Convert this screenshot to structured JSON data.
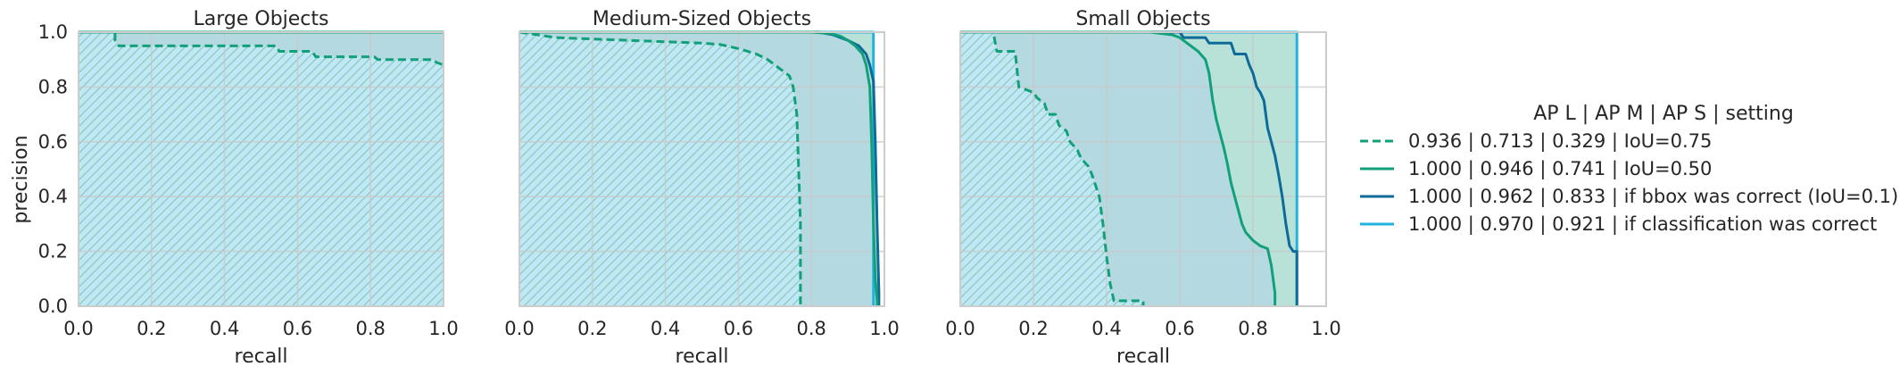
{
  "chart_data": [
    {
      "type": "area",
      "title": "Large Objects",
      "xlabel": "recall",
      "ylabel": "precision",
      "xlim": [
        0,
        1
      ],
      "ylim": [
        0,
        1
      ],
      "xticks": [
        "0.0",
        "0.2",
        "0.4",
        "0.6",
        "0.8",
        "1.0"
      ],
      "yticks": [
        "0.0",
        "0.2",
        "0.4",
        "0.6",
        "0.8",
        "1.0"
      ],
      "grid": true,
      "series": [
        {
          "name": "IoU=0.75",
          "style": "dashed",
          "hatch": true,
          "color": "#12a07b",
          "x": [
            0,
            0.1,
            0.1,
            0.11,
            0.54,
            0.55,
            0.64,
            0.65,
            0.81,
            0.82,
            0.97,
            0.98,
            1.0
          ],
          "y": [
            1,
            1,
            0.97,
            0.95,
            0.95,
            0.93,
            0.93,
            0.91,
            0.91,
            0.9,
            0.9,
            0.89,
            0.88
          ]
        },
        {
          "name": "IoU=0.50",
          "style": "solid",
          "color": "#12a07b",
          "x": [
            0,
            1
          ],
          "y": [
            1,
            1
          ]
        },
        {
          "name": "if bbox was correct",
          "style": "solid",
          "color": "#0e6a98",
          "x": [
            0,
            1
          ],
          "y": [
            1,
            1
          ]
        },
        {
          "name": "if classification was correct",
          "style": "solid",
          "color": "#1fb3dd",
          "x": [
            0,
            1
          ],
          "y": [
            1,
            1
          ]
        }
      ]
    },
    {
      "type": "area",
      "title": "Medium-Sized Objects",
      "xlabel": "recall",
      "ylabel": "",
      "xlim": [
        0,
        1
      ],
      "ylim": [
        0,
        1
      ],
      "xticks": [
        "0.0",
        "0.2",
        "0.4",
        "0.6",
        "0.8",
        "1.0"
      ],
      "yticks": [],
      "grid": true,
      "series": [
        {
          "name": "IoU=0.75",
          "style": "dashed",
          "hatch": true,
          "color": "#12a07b",
          "x": [
            0,
            0.05,
            0.1,
            0.2,
            0.3,
            0.4,
            0.5,
            0.55,
            0.6,
            0.65,
            0.68,
            0.7,
            0.72,
            0.74,
            0.75,
            0.76,
            0.765,
            0.77,
            0.77
          ],
          "y": [
            1,
            0.99,
            0.98,
            0.975,
            0.97,
            0.965,
            0.96,
            0.955,
            0.94,
            0.92,
            0.9,
            0.88,
            0.86,
            0.84,
            0.8,
            0.7,
            0.5,
            0.3,
            0
          ]
        },
        {
          "name": "IoU=0.50",
          "style": "solid",
          "color": "#12a07b",
          "x": [
            0,
            0.8,
            0.85,
            0.88,
            0.9,
            0.92,
            0.94,
            0.95,
            0.96,
            0.965,
            0.97,
            0.975,
            0.98,
            0.98
          ],
          "y": [
            1,
            1,
            0.995,
            0.985,
            0.97,
            0.95,
            0.92,
            0.88,
            0.8,
            0.6,
            0.3,
            0.1,
            0.02,
            0
          ]
        },
        {
          "name": "if bbox was correct",
          "style": "solid",
          "color": "#0e6a98",
          "x": [
            0,
            0.82,
            0.86,
            0.9,
            0.93,
            0.95,
            0.96,
            0.97,
            0.975,
            0.98,
            0.985,
            0.985
          ],
          "y": [
            1,
            1,
            0.99,
            0.97,
            0.95,
            0.92,
            0.88,
            0.82,
            0.6,
            0.3,
            0.05,
            0
          ]
        },
        {
          "name": "if classification was correct",
          "style": "solid",
          "color": "#1fb3dd",
          "x": [
            0,
            0.97,
            0.97
          ],
          "y": [
            1,
            1,
            0
          ]
        }
      ]
    },
    {
      "type": "area",
      "title": "Small Objects",
      "xlabel": "recall",
      "ylabel": "",
      "xlim": [
        0,
        1
      ],
      "ylim": [
        0,
        1
      ],
      "xticks": [
        "0.0",
        "0.2",
        "0.4",
        "0.6",
        "0.8",
        "1.0"
      ],
      "yticks": [],
      "grid": true,
      "series": [
        {
          "name": "IoU=0.75",
          "style": "dashed",
          "hatch": true,
          "color": "#12a07b",
          "x": [
            0,
            0.09,
            0.1,
            0.15,
            0.16,
            0.2,
            0.21,
            0.23,
            0.24,
            0.26,
            0.27,
            0.29,
            0.3,
            0.32,
            0.33,
            0.35,
            0.36,
            0.37,
            0.38,
            0.39,
            0.4,
            0.41,
            0.42,
            0.5,
            0.5
          ],
          "y": [
            1,
            1,
            0.93,
            0.93,
            0.8,
            0.78,
            0.76,
            0.74,
            0.7,
            0.7,
            0.66,
            0.64,
            0.6,
            0.57,
            0.54,
            0.51,
            0.48,
            0.44,
            0.4,
            0.3,
            0.18,
            0.08,
            0.02,
            0.02,
            0
          ]
        },
        {
          "name": "IoU=0.50",
          "style": "solid",
          "color": "#12a07b",
          "x": [
            0,
            0.52,
            0.58,
            0.6,
            0.62,
            0.65,
            0.67,
            0.68,
            0.69,
            0.7,
            0.71,
            0.72,
            0.73,
            0.74,
            0.75,
            0.76,
            0.77,
            0.78,
            0.8,
            0.82,
            0.84,
            0.85,
            0.86,
            0.86
          ],
          "y": [
            1,
            1,
            0.99,
            0.98,
            0.96,
            0.93,
            0.9,
            0.85,
            0.75,
            0.68,
            0.63,
            0.58,
            0.52,
            0.45,
            0.4,
            0.35,
            0.3,
            0.27,
            0.24,
            0.22,
            0.21,
            0.15,
            0.05,
            0
          ]
        },
        {
          "name": "if bbox was correct",
          "style": "solid",
          "color": "#0e6a98",
          "x": [
            0,
            0.6,
            0.61,
            0.67,
            0.68,
            0.74,
            0.75,
            0.78,
            0.79,
            0.8,
            0.81,
            0.82,
            0.83,
            0.84,
            0.85,
            0.86,
            0.87,
            0.88,
            0.89,
            0.9,
            0.91,
            0.92,
            0.92
          ],
          "y": [
            1,
            1,
            0.98,
            0.98,
            0.96,
            0.96,
            0.92,
            0.92,
            0.88,
            0.85,
            0.8,
            0.78,
            0.75,
            0.65,
            0.6,
            0.55,
            0.48,
            0.4,
            0.3,
            0.22,
            0.2,
            0.2,
            0
          ]
        },
        {
          "name": "if classification was correct",
          "style": "solid",
          "color": "#1fb3dd",
          "x": [
            0,
            0.92,
            0.92
          ],
          "y": [
            1,
            1,
            0
          ]
        }
      ]
    }
  ],
  "legend": {
    "title": "AP L | AP M | AP S | setting",
    "placement": "right",
    "entries": [
      {
        "label": "0.936 | 0.713 | 0.329 | IoU=0.75",
        "style": "dashed",
        "color": "#12a07b"
      },
      {
        "label": "1.000 | 0.946 | 0.741 | IoU=0.50",
        "style": "solid",
        "color": "#12a07b"
      },
      {
        "label": "1.000 | 0.962 | 0.833 | if bbox was correct (IoU=0.1)",
        "style": "solid",
        "color": "#0e6a98"
      },
      {
        "label": "1.000 | 0.970 | 0.921 | if classification was correct",
        "style": "solid",
        "color": "#1fb3dd"
      }
    ]
  },
  "colors": {
    "grid": "#c8c8c8",
    "frame": "#cccccc",
    "fill_outer_classification": "#bfe8f6",
    "fill_outer_bbox": "#b5d9e0",
    "fill_iou50": "#b8e2d8",
    "fill_iou75": "#b8e2d8",
    "hatch": "#8fc7b6"
  }
}
